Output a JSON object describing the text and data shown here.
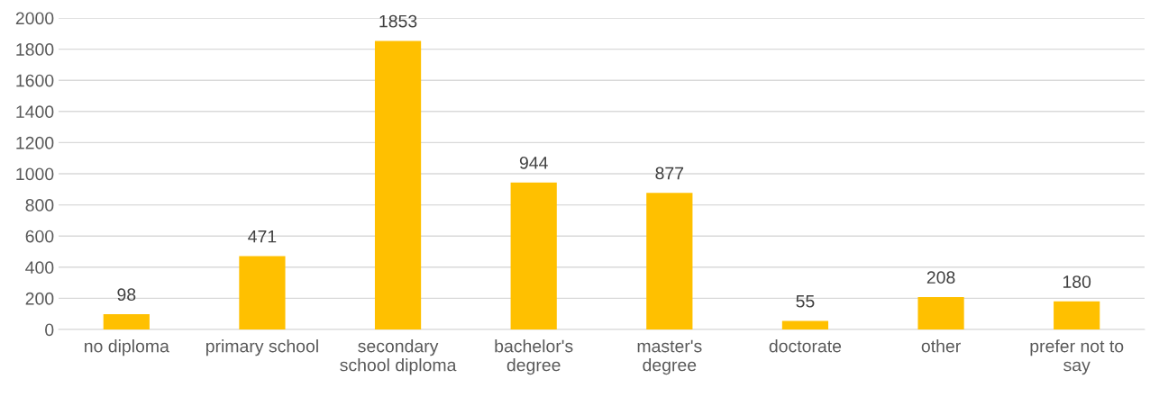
{
  "chart_data": {
    "type": "bar",
    "categories": [
      "no diploma",
      "primary school",
      "secondary\nschool diploma",
      "bachelor's\ndegree",
      "master's\ndegree",
      "doctorate",
      "other",
      "prefer not to\nsay"
    ],
    "values": [
      98,
      471,
      1853,
      944,
      877,
      55,
      208,
      180
    ],
    "color": "#ffc000",
    "ylim": [
      0,
      2000
    ],
    "yticks": [
      0,
      200,
      400,
      600,
      800,
      1000,
      1200,
      1400,
      1600,
      1800,
      2000
    ],
    "grid": "y",
    "data_labels": true
  }
}
